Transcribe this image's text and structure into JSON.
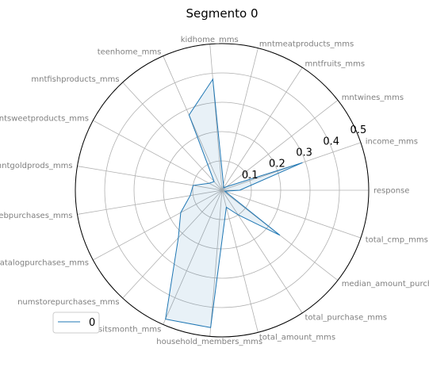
{
  "chart_data": {
    "type": "radar",
    "title": "Segmento 0",
    "categories": [
      "response",
      "income_mms",
      "mntwines_mms",
      "mntfruits_mms",
      "mntmeatproducts_mms",
      "kidhome_mms",
      "teenhome_mms",
      "mntfishproducts_mms",
      "mntsweetproducts_mms",
      "mntgoldprods_mms",
      "numwebpurchases_mms",
      "numcatalogpurchases_mms",
      "numstorepurchases_mms",
      "numwebvisitsmonth_mms",
      "household_members_mms",
      "total_amount_mms",
      "total_purchase_mms",
      "median_amount_purchase_mms",
      "total_cmp_mms"
    ],
    "series": [
      {
        "name": "0",
        "values": [
          0.06,
          0.29,
          0.02,
          0.01,
          0.02,
          0.38,
          0.28,
          0.04,
          0.05,
          0.1,
          0.11,
          0.16,
          0.22,
          0.48,
          0.47,
          0.06,
          0.1,
          0.25,
          0.01
        ]
      }
    ],
    "rticks": [
      "0.1",
      "0.2",
      "0.3",
      "0.4",
      "0.5"
    ],
    "rlim": [
      0,
      0.5
    ],
    "grid": true,
    "legend": "lower-left",
    "colors": {
      "line": "#1f77b4",
      "fill": "#1f77b4",
      "grid": "#b0b0b0",
      "label": "#808080"
    }
  }
}
